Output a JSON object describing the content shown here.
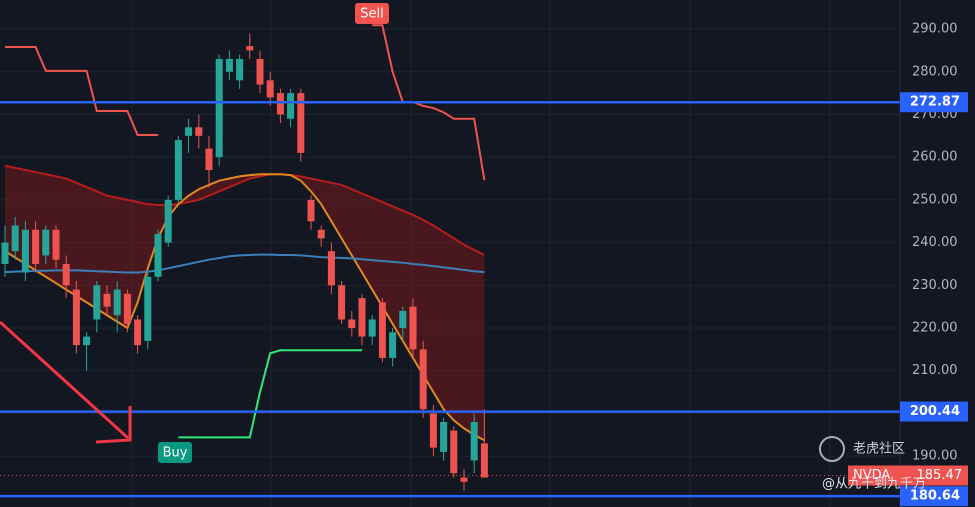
{
  "chart_data": {
    "type": "candlestick",
    "ylim": [
      178.1,
      296.8
    ],
    "yticks": [
      {
        "value": 190,
        "label": "190.00"
      },
      {
        "value": 200,
        "label": "200.00"
      },
      {
        "value": 210,
        "label": "210.00"
      },
      {
        "value": 220,
        "label": "220.00"
      },
      {
        "value": 230,
        "label": "230.00"
      },
      {
        "value": 240,
        "label": "240.00"
      },
      {
        "value": 250,
        "label": "250.00"
      },
      {
        "value": 260,
        "label": "260.00"
      },
      {
        "value": 270,
        "label": "270.00"
      },
      {
        "value": 280,
        "label": "280.00"
      },
      {
        "value": 290,
        "label": "290.00"
      }
    ],
    "grid": true,
    "up_color": "#26a69a",
    "down_color": "#ef5350",
    "open": [
      235,
      238,
      233,
      243,
      237,
      243,
      235,
      229,
      216,
      222,
      228,
      223,
      228,
      222,
      217,
      232,
      240,
      250,
      265,
      267,
      262,
      260,
      280,
      278,
      286,
      283,
      278,
      275,
      269,
      275,
      250,
      243,
      238,
      230,
      222,
      227,
      218,
      226,
      213,
      220,
      225,
      215,
      200,
      191,
      196,
      185,
      189,
      193
    ],
    "high": [
      244,
      246,
      245,
      245,
      244,
      244,
      237,
      231,
      219,
      231,
      230,
      231,
      229,
      223,
      233,
      243,
      251,
      265,
      269,
      270,
      265,
      284,
      285,
      284,
      289,
      285,
      280,
      276,
      276,
      276,
      251,
      244,
      240,
      231,
      224,
      228,
      223,
      227,
      220,
      225,
      227,
      217,
      202,
      199,
      197,
      187,
      200,
      201
    ],
    "low": [
      232,
      236,
      231,
      233,
      235,
      234,
      227,
      214,
      210,
      219,
      223,
      219,
      219,
      214,
      215,
      231,
      239,
      249,
      261,
      262,
      253,
      258,
      278,
      276,
      283,
      275,
      272,
      268,
      267,
      259,
      243,
      239,
      228,
      221,
      218,
      216,
      216,
      212,
      211,
      217,
      213,
      199,
      190,
      189,
      185,
      182,
      186,
      185
    ],
    "close": [
      240,
      244,
      243,
      235,
      243,
      236,
      230,
      216,
      218,
      230,
      225,
      229,
      221,
      216,
      232,
      242,
      250,
      264,
      267,
      265,
      257,
      283,
      283,
      283,
      285,
      277,
      274,
      270,
      275,
      261,
      245,
      241,
      230,
      222,
      220,
      218,
      222,
      213,
      219,
      224,
      215,
      201,
      192,
      198,
      186,
      184,
      198,
      185
    ],
    "series": [
      {
        "color": "#ef5350",
        "values": [
          285.8,
          285.8,
          285.8,
          285.8,
          280.2,
          280.2,
          280.2,
          280.2,
          280.2,
          270.8,
          270.8,
          270.8,
          270.8,
          265.2,
          265.2,
          265.2,
          null,
          null,
          null,
          null,
          null,
          null,
          null,
          null,
          null,
          null,
          null,
          null,
          null,
          null,
          null,
          null,
          null,
          null,
          null,
          null,
          290.9,
          290.9,
          280,
          272.9,
          272.9,
          272,
          271.5,
          270.5,
          269,
          269,
          269,
          254.6
        ]
      },
      {
        "color": "#2ee87a",
        "values": [
          null,
          null,
          null,
          null,
          null,
          null,
          null,
          null,
          null,
          null,
          null,
          null,
          null,
          null,
          null,
          null,
          null,
          194.4,
          194.4,
          194.4,
          194.4,
          194.4,
          194.4,
          194.4,
          194.4,
          205,
          214.1,
          214.8,
          214.8,
          214.8,
          214.8,
          214.8,
          214.8,
          214.8,
          214.8,
          214.8,
          null,
          null,
          null,
          null,
          null,
          null,
          null,
          null,
          null,
          null,
          null,
          null
        ]
      },
      {
        "color": "#3d7fb8",
        "values": [
          233.1,
          233.2,
          233.3,
          233.4,
          233.4,
          233.5,
          233.5,
          233.5,
          233.4,
          233.3,
          233.2,
          233.1,
          233.0,
          233.0,
          233.2,
          233.5,
          234,
          234.5,
          235,
          235.5,
          236,
          236.4,
          236.8,
          237,
          237.1,
          237.2,
          237.2,
          237.1,
          237.1,
          237,
          236.8,
          236.6,
          236.5,
          236.4,
          236.3,
          236.1,
          235.9,
          235.7,
          235.5,
          235.3,
          235,
          234.8,
          234.5,
          234.2,
          233.9,
          233.6,
          233.3,
          233.1
        ]
      },
      {
        "color": "#b71c1c",
        "values": [
          258,
          257.5,
          257,
          256.5,
          256,
          255.5,
          255,
          254,
          253,
          252,
          251,
          250.5,
          250,
          249.5,
          249,
          248.8,
          248.8,
          249,
          249.5,
          250,
          251,
          252,
          253,
          254,
          255,
          255.5,
          256,
          256,
          255.8,
          255.5,
          255,
          254.5,
          254,
          253.5,
          252.5,
          251.5,
          250.5,
          249.5,
          248.5,
          247.5,
          246.5,
          245.3,
          244,
          242.5,
          241,
          239.5,
          238.3,
          237.1
        ]
      },
      {
        "color": "#e08a1e",
        "values": [
          238,
          236.5,
          235,
          233.5,
          232,
          230.5,
          229,
          227.5,
          226,
          224.5,
          223,
          221.5,
          220,
          226,
          234,
          241,
          246,
          249,
          251,
          252.5,
          253.5,
          254.5,
          255,
          255.5,
          255.8,
          256,
          256,
          256,
          255.8,
          254.5,
          252,
          249,
          245,
          241,
          237,
          233,
          229,
          225,
          221,
          217,
          213,
          209,
          205,
          201,
          198.4,
          196.5,
          195,
          193.7
        ]
      }
    ],
    "levels": [
      272.87,
      200.44,
      180.64
    ],
    "level_color": "#2962ff",
    "last_price": {
      "name": "NVDA",
      "value": 185.47
    },
    "signals": {
      "sell": "Sell",
      "buy": "Buy"
    },
    "watermark": {
      "title": "老虎社区",
      "author": "@从九千到九千万"
    }
  }
}
